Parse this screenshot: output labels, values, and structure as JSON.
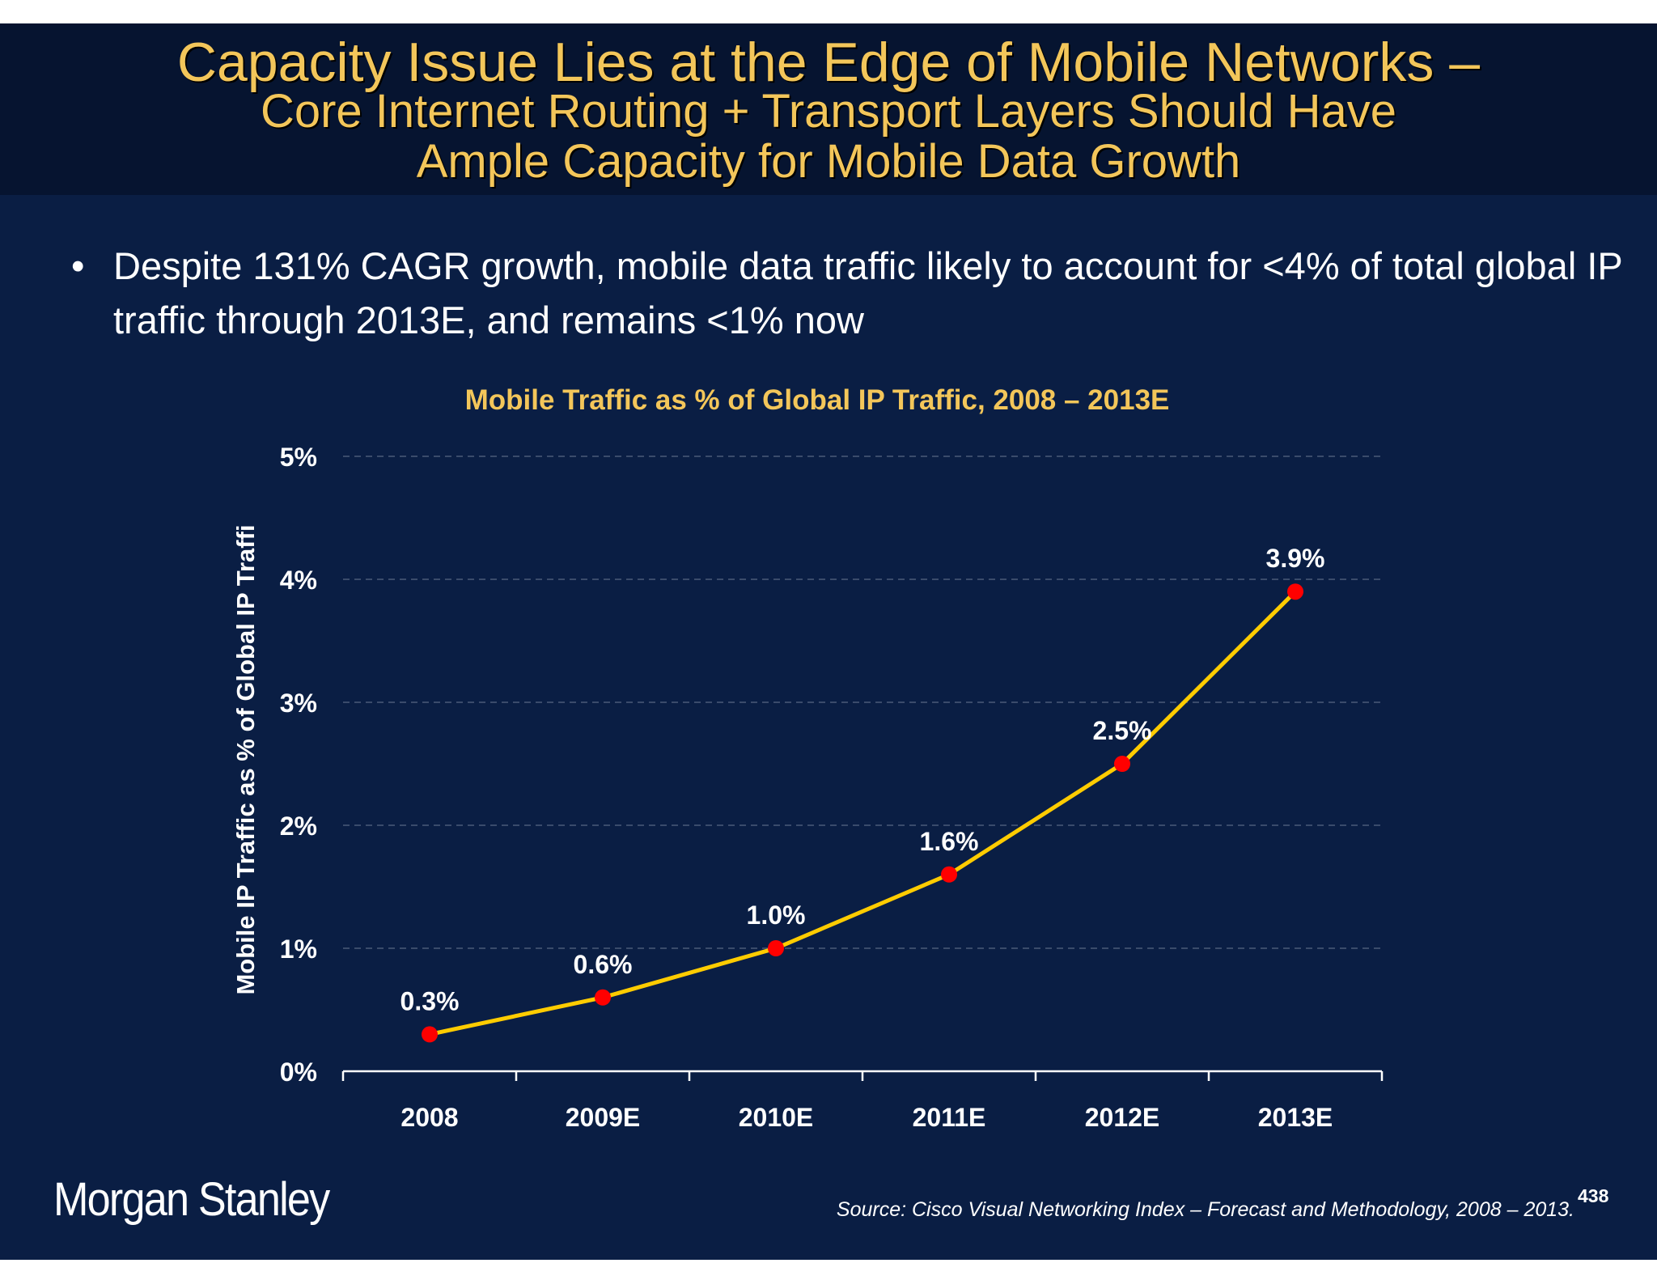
{
  "header": {
    "title_line1": "Capacity Issue Lies at the Edge of Mobile Networks –",
    "title_line2": "Core Internet Routing + Transport Layers Should Have",
    "title_line3": "Ample Capacity for Mobile Data Growth"
  },
  "bullet": {
    "marker": "•",
    "text": "Despite 131% CAGR growth, mobile data traffic likely to account for <4% of total global IP traffic through 2013E, and remains <1% now"
  },
  "chart_data": {
    "type": "line",
    "title": "Mobile Traffic as % of Global IP Traffic, 2008 – 2013E",
    "ylabel": "Mobile IP Traffic as % of Global IP Traffi",
    "xlabel": "",
    "categories": [
      "2008",
      "2009E",
      "2010E",
      "2011E",
      "2012E",
      "2013E"
    ],
    "values": [
      0.3,
      0.6,
      1.0,
      1.6,
      2.5,
      3.9
    ],
    "data_labels": [
      "0.3%",
      "0.6%",
      "1.0%",
      "1.6%",
      "2.5%",
      "3.9%"
    ],
    "ylim": [
      0,
      5
    ],
    "yticks": [
      0,
      1,
      2,
      3,
      4,
      5
    ],
    "ytick_labels": [
      "0%",
      "1%",
      "2%",
      "3%",
      "4%",
      "5%"
    ],
    "grid": "horizontal dashed",
    "line_color": "#FFCC00",
    "marker_color": "#FF0000"
  },
  "footer": {
    "logo": "Morgan Stanley",
    "source": "Source: Cisco Visual Networking Index – Forecast and Methodology, 2008 – 2013.",
    "page_number": "438"
  },
  "colors": {
    "title": "#F3C65A",
    "background": "#0A1E44",
    "header_bg": "#061430"
  }
}
